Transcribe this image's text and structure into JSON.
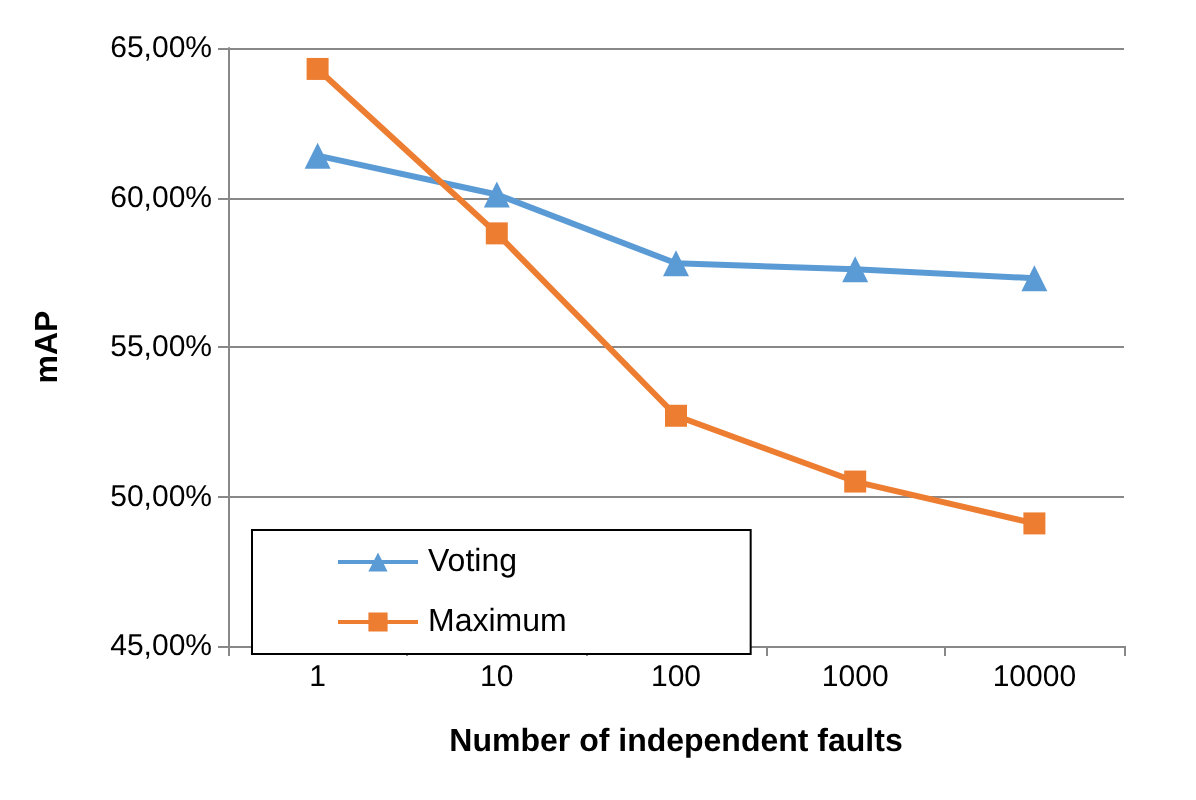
{
  "chart_data": {
    "type": "line",
    "xlabel": "Number of independent faults",
    "ylabel": "mAP",
    "categories": [
      "1",
      "10",
      "100",
      "1000",
      "10000"
    ],
    "series": [
      {
        "name": "Voting",
        "color": "#5b9bd5",
        "marker": "triangle",
        "values": [
          61.4,
          60.1,
          57.8,
          57.6,
          57.3
        ]
      },
      {
        "name": "Maximum",
        "color": "#ed7d31",
        "marker": "square",
        "values": [
          64.3,
          58.8,
          52.7,
          50.5,
          49.1
        ]
      }
    ],
    "ylim": [
      45,
      65
    ],
    "yticks": [
      {
        "value": 45,
        "label": "45,00%"
      },
      {
        "value": 50,
        "label": "50,00%"
      },
      {
        "value": 55,
        "label": "55,00%"
      },
      {
        "value": 60,
        "label": "60,00%"
      },
      {
        "value": 65,
        "label": "65,00%"
      }
    ],
    "grid": "y",
    "legend": "bottom left",
    "line_style": "solid"
  }
}
